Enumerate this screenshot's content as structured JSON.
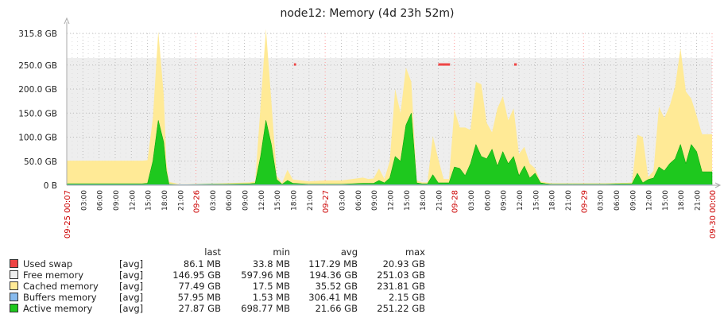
{
  "chart_data": {
    "type": "area",
    "title": "node12: Memory (4d 23h 52m)",
    "x_unit": "hours since 09-25 00:07",
    "y_unit": "GB",
    "ylim": [
      0,
      315.8
    ],
    "y_ticks": [
      {
        "v": 315.8,
        "label": "315.8 GB"
      },
      {
        "v": 250,
        "label": "250.0 GB"
      },
      {
        "v": 200,
        "label": "200.0 GB"
      },
      {
        "v": 150,
        "label": "150.0 GB"
      },
      {
        "v": 100,
        "label": "100.0 GB"
      },
      {
        "v": 50,
        "label": "50.0 GB"
      },
      {
        "v": 0,
        "label": "0 B"
      }
    ],
    "x_labels": [
      {
        "h": 0,
        "label": "09-25 00:07",
        "red": true
      },
      {
        "h": 3,
        "label": "03:00"
      },
      {
        "h": 6,
        "label": "06:00"
      },
      {
        "h": 9,
        "label": "09:00"
      },
      {
        "h": 12,
        "label": "12:00"
      },
      {
        "h": 15,
        "label": "15:00"
      },
      {
        "h": 18,
        "label": "18:00"
      },
      {
        "h": 21,
        "label": "21:00"
      },
      {
        "h": 24,
        "label": "09-26",
        "red": true
      },
      {
        "h": 27,
        "label": "03:00"
      },
      {
        "h": 30,
        "label": "06:00"
      },
      {
        "h": 33,
        "label": "09:00"
      },
      {
        "h": 36,
        "label": "12:00"
      },
      {
        "h": 39,
        "label": "15:00"
      },
      {
        "h": 42,
        "label": "18:00"
      },
      {
        "h": 45,
        "label": "21:00"
      },
      {
        "h": 48,
        "label": "09-27",
        "red": true
      },
      {
        "h": 51,
        "label": "03:00"
      },
      {
        "h": 54,
        "label": "06:00"
      },
      {
        "h": 57,
        "label": "09:00"
      },
      {
        "h": 60,
        "label": "12:00"
      },
      {
        "h": 63,
        "label": "15:00"
      },
      {
        "h": 66,
        "label": "18:00"
      },
      {
        "h": 69,
        "label": "21:00"
      },
      {
        "h": 72,
        "label": "09-28",
        "red": true
      },
      {
        "h": 75,
        "label": "03:00"
      },
      {
        "h": 78,
        "label": "06:00"
      },
      {
        "h": 81,
        "label": "09:00"
      },
      {
        "h": 84,
        "label": "12:00"
      },
      {
        "h": 87,
        "label": "15:00"
      },
      {
        "h": 90,
        "label": "18:00"
      },
      {
        "h": 93,
        "label": "21:00"
      },
      {
        "h": 96,
        "label": "09-29",
        "red": true
      },
      {
        "h": 99,
        "label": "03:00"
      },
      {
        "h": 102,
        "label": "06:00"
      },
      {
        "h": 105,
        "label": "09:00"
      },
      {
        "h": 108,
        "label": "12:00"
      },
      {
        "h": 111,
        "label": "15:00"
      },
      {
        "h": 114,
        "label": "18:00"
      },
      {
        "h": 117,
        "label": "21:00"
      },
      {
        "h": 119.87,
        "label": "09-30 00:00",
        "red": true
      }
    ],
    "x": [
      0,
      14,
      15,
      16,
      17,
      18,
      18.5,
      19,
      21,
      27,
      29,
      34,
      35,
      36,
      37,
      38,
      39,
      40,
      41,
      42,
      45,
      48,
      51,
      55,
      56,
      57,
      58,
      59,
      60,
      61,
      62,
      63,
      64,
      65,
      66,
      67,
      68,
      69,
      70,
      71,
      72,
      73,
      74,
      75,
      76,
      77,
      78,
      79,
      80,
      81,
      82,
      83,
      84,
      85,
      86,
      87,
      88,
      89,
      90,
      94,
      100,
      103,
      104,
      105,
      106,
      107,
      108,
      109,
      110,
      111,
      112,
      113,
      114,
      115,
      116,
      117,
      118,
      119,
      119.87
    ],
    "series": [
      {
        "name": "Active memory",
        "color": "#1ec81e",
        "values": [
          3,
          3,
          4,
          50,
          135,
          90,
          30,
          2,
          1,
          2,
          2,
          3,
          4,
          60,
          135,
          85,
          12,
          2,
          10,
          4,
          2,
          2,
          2,
          4,
          4,
          4,
          10,
          5,
          15,
          60,
          50,
          125,
          150,
          5,
          3,
          3,
          22,
          5,
          5,
          5,
          38,
          35,
          20,
          45,
          85,
          60,
          55,
          75,
          40,
          70,
          45,
          60,
          20,
          40,
          15,
          25,
          5,
          3,
          2,
          2,
          2,
          3,
          3,
          3,
          25,
          5,
          12,
          15,
          38,
          30,
          45,
          55,
          85,
          45,
          85,
          70,
          28,
          28,
          28
        ],
        "stack_on_top": [
          48,
          48,
          48,
          90,
          185,
          100,
          20,
          5,
          1,
          1,
          2,
          3,
          4,
          105,
          190,
          90,
          8,
          3,
          22,
          8,
          6,
          8,
          8,
          12,
          9,
          10,
          25,
          8,
          35,
          140,
          100,
          120,
          65,
          5,
          3,
          3,
          80,
          50,
          8,
          8,
          120,
          85,
          100,
          70,
          130,
          150,
          75,
          35,
          120,
          115,
          90,
          100,
          45,
          40,
          30,
          10,
          3,
          3,
          2,
          2,
          2,
          2,
          2,
          3,
          80,
          95,
          5,
          15,
          125,
          110,
          120,
          150,
          200,
          150,
          95,
          75,
          78,
          78,
          78
        ],
        "top_series": "Cached memory",
        "top_color": "#ffea96"
      }
    ],
    "free_color": "#eeeeee",
    "red_marks": [
      {
        "h0": 42.2,
        "h1": 42.6,
        "v": 252
      },
      {
        "h0": 69.0,
        "h1": 71.2,
        "v": 252
      },
      {
        "h0": 83.1,
        "h1": 83.6,
        "v": 252
      }
    ]
  },
  "legend": {
    "headers": {
      "last": "last",
      "min": "min",
      "avg": "avg",
      "max": "max"
    },
    "rows": [
      {
        "name": "Used swap",
        "fn": "[avg]",
        "last": "86.1 MB",
        "min": "33.8 MB",
        "avg": "117.29 MB",
        "max": "20.93 GB",
        "color": "#ee4444"
      },
      {
        "name": "Free memory",
        "fn": "[avg]",
        "last": "146.95 GB",
        "min": "597.96 MB",
        "avg": "194.36 GB",
        "max": "251.03 GB",
        "color": "#eeeeee"
      },
      {
        "name": "Cached memory",
        "fn": "[avg]",
        "last": "77.49 GB",
        "min": "17.5 MB",
        "avg": "35.52 GB",
        "max": "231.81 GB",
        "color": "#ffea96"
      },
      {
        "name": "Buffers memory",
        "fn": "[avg]",
        "last": "57.95 MB",
        "min": "1.53 MB",
        "avg": "306.41 MB",
        "max": "2.15 GB",
        "color": "#88bbee"
      },
      {
        "name": "Active memory",
        "fn": "[avg]",
        "last": "27.87 GB",
        "min": "698.77 MB",
        "avg": "21.66 GB",
        "max": "251.22 GB",
        "color": "#1ec81e"
      }
    ]
  }
}
